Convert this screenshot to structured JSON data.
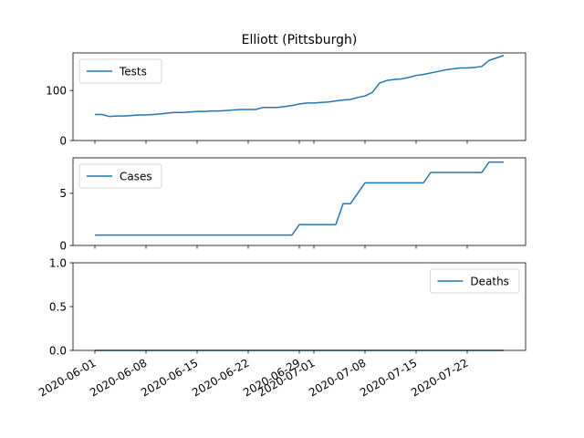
{
  "title": "Elliott (Pittsburgh)",
  "colors": {
    "series": "#1f77b4",
    "axis": "#000000",
    "legend_border": "#cccccc"
  },
  "chart_data": [
    {
      "type": "line",
      "series": [
        {
          "name": "Tests",
          "x": [
            "2020-06-01",
            "2020-06-02",
            "2020-06-03",
            "2020-06-04",
            "2020-06-05",
            "2020-06-06",
            "2020-06-07",
            "2020-06-08",
            "2020-06-09",
            "2020-06-10",
            "2020-06-11",
            "2020-06-12",
            "2020-06-13",
            "2020-06-14",
            "2020-06-15",
            "2020-06-16",
            "2020-06-17",
            "2020-06-18",
            "2020-06-19",
            "2020-06-20",
            "2020-06-21",
            "2020-06-22",
            "2020-06-23",
            "2020-06-24",
            "2020-06-25",
            "2020-06-26",
            "2020-06-27",
            "2020-06-28",
            "2020-06-29",
            "2020-06-30",
            "2020-07-01",
            "2020-07-02",
            "2020-07-03",
            "2020-07-04",
            "2020-07-05",
            "2020-07-06",
            "2020-07-07",
            "2020-07-08",
            "2020-07-09",
            "2020-07-10",
            "2020-07-11",
            "2020-07-12",
            "2020-07-13",
            "2020-07-14",
            "2020-07-15",
            "2020-07-16",
            "2020-07-17",
            "2020-07-18",
            "2020-07-19",
            "2020-07-20",
            "2020-07-21",
            "2020-07-22",
            "2020-07-23",
            "2020-07-24",
            "2020-07-25",
            "2020-07-26",
            "2020-07-27"
          ],
          "values": [
            52,
            52,
            48,
            49,
            49,
            50,
            51,
            51,
            52,
            53,
            55,
            56,
            56,
            57,
            58,
            58,
            59,
            59,
            60,
            61,
            62,
            62,
            62,
            66,
            66,
            66,
            68,
            70,
            73,
            75,
            75,
            76,
            77,
            79,
            81,
            82,
            86,
            89,
            96,
            115,
            120,
            122,
            123,
            126,
            130,
            132,
            135,
            138,
            141,
            143,
            145,
            145,
            146,
            148,
            160,
            165,
            170
          ]
        }
      ],
      "ylim": [
        0,
        175
      ],
      "yticks": [
        {
          "value": 0,
          "label": "0"
        },
        {
          "value": 100,
          "label": "100"
        }
      ],
      "legend": "upper left",
      "grid": false
    },
    {
      "type": "line",
      "series": [
        {
          "name": "Cases",
          "x": [
            "2020-06-01",
            "2020-06-02",
            "2020-06-03",
            "2020-06-04",
            "2020-06-05",
            "2020-06-06",
            "2020-06-07",
            "2020-06-08",
            "2020-06-09",
            "2020-06-10",
            "2020-06-11",
            "2020-06-12",
            "2020-06-13",
            "2020-06-14",
            "2020-06-15",
            "2020-06-16",
            "2020-06-17",
            "2020-06-18",
            "2020-06-19",
            "2020-06-20",
            "2020-06-21",
            "2020-06-22",
            "2020-06-23",
            "2020-06-24",
            "2020-06-25",
            "2020-06-26",
            "2020-06-27",
            "2020-06-28",
            "2020-06-29",
            "2020-06-30",
            "2020-07-01",
            "2020-07-02",
            "2020-07-03",
            "2020-07-04",
            "2020-07-05",
            "2020-07-06",
            "2020-07-07",
            "2020-07-08",
            "2020-07-09",
            "2020-07-10",
            "2020-07-11",
            "2020-07-12",
            "2020-07-13",
            "2020-07-14",
            "2020-07-15",
            "2020-07-16",
            "2020-07-17",
            "2020-07-18",
            "2020-07-19",
            "2020-07-20",
            "2020-07-21",
            "2020-07-22",
            "2020-07-23",
            "2020-07-24",
            "2020-07-25",
            "2020-07-26",
            "2020-07-27"
          ],
          "values": [
            1,
            1,
            1,
            1,
            1,
            1,
            1,
            1,
            1,
            1,
            1,
            1,
            1,
            1,
            1,
            1,
            1,
            1,
            1,
            1,
            1,
            1,
            1,
            1,
            1,
            1,
            1,
            1,
            2,
            2,
            2,
            2,
            2,
            2,
            4,
            4,
            5,
            6,
            6,
            6,
            6,
            6,
            6,
            6,
            6,
            6,
            7,
            7,
            7,
            7,
            7,
            7,
            7,
            7,
            8,
            8,
            8
          ]
        }
      ],
      "ylim": [
        0,
        8.4
      ],
      "yticks": [
        {
          "value": 0,
          "label": "0"
        },
        {
          "value": 5,
          "label": "5"
        }
      ],
      "legend": "upper left",
      "grid": false
    },
    {
      "type": "line",
      "series": [
        {
          "name": "Deaths",
          "x": [
            "2020-06-01",
            "2020-07-27"
          ],
          "values": [
            0,
            0
          ]
        }
      ],
      "ylim": [
        0,
        1
      ],
      "yticks": [
        {
          "value": 0,
          "label": "0.0"
        },
        {
          "value": 0.5,
          "label": "0.5"
        },
        {
          "value": 1,
          "label": "1.0"
        }
      ],
      "legend": "upper right",
      "grid": false
    }
  ],
  "xaxis": {
    "range": [
      "2020-05-29",
      "2020-07-30"
    ],
    "ticks": [
      "2020-06-01",
      "2020-06-08",
      "2020-06-15",
      "2020-06-22",
      "2020-06-29",
      "2020-07-01",
      "2020-07-08",
      "2020-07-15",
      "2020-07-22"
    ]
  }
}
